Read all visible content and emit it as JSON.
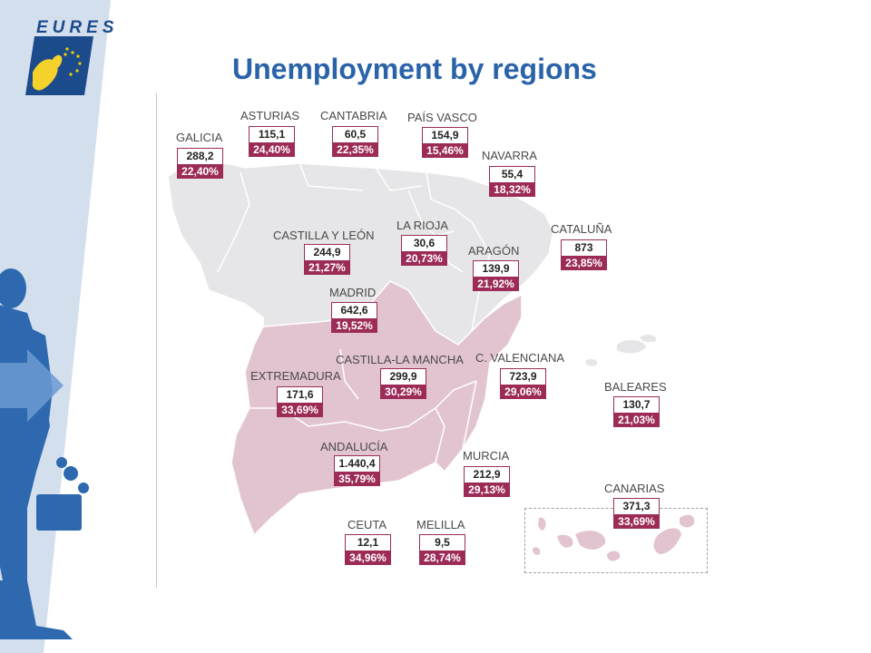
{
  "title": "Unemployment by regions",
  "logo": {
    "text": "EURES"
  },
  "colors": {
    "accent": "#9c2c57",
    "title": "#2a63a9",
    "highlight_region": "#e2c4d0",
    "base_region": "#e6e6e8"
  },
  "regions": [
    {
      "id": "galicia",
      "name": "GALICIA",
      "value": "288,2",
      "pct": "22,40%"
    },
    {
      "id": "asturias",
      "name": "ASTURIAS",
      "value": "115,1",
      "pct": "24,40%"
    },
    {
      "id": "cantabria",
      "name": "CANTABRIA",
      "value": "60,5",
      "pct": "22,35%"
    },
    {
      "id": "pais-vasco",
      "name": "PAÍS VASCO",
      "value": "154,9",
      "pct": "15,46%"
    },
    {
      "id": "navarra",
      "name": "NAVARRA",
      "value": "55,4",
      "pct": "18,32%"
    },
    {
      "id": "castilla-leon",
      "name": "CASTILLA Y LEÓN",
      "value": "244,9",
      "pct": "21,27%"
    },
    {
      "id": "la-rioja",
      "name": "LA RIOJA",
      "value": "30,6",
      "pct": "20,73%"
    },
    {
      "id": "aragon",
      "name": "ARAGÓN",
      "value": "139,9",
      "pct": "21,92%"
    },
    {
      "id": "cataluna",
      "name": "CATALUÑA",
      "value": "873",
      "pct": "23,85%"
    },
    {
      "id": "madrid",
      "name": "MADRID",
      "value": "642,6",
      "pct": "19,52%"
    },
    {
      "id": "castilla-la-mancha",
      "name": "CASTILLA-LA MANCHA",
      "value": "299,9",
      "pct": "30,29%"
    },
    {
      "id": "c-valenciana",
      "name": "C. VALENCIANA",
      "value": "723,9",
      "pct": "29,06%"
    },
    {
      "id": "extremadura",
      "name": "EXTREMADURA",
      "value": "171,6",
      "pct": "33,69%"
    },
    {
      "id": "baleares",
      "name": "BALEARES",
      "value": "130,7",
      "pct": "21,03%"
    },
    {
      "id": "andalucia",
      "name": "ANDALUCÍA",
      "value": "1.440,4",
      "pct": "35,79%"
    },
    {
      "id": "murcia",
      "name": "MURCIA",
      "value": "212,9",
      "pct": "29,13%"
    },
    {
      "id": "canarias",
      "name": "CANARIAS",
      "value": "371,3",
      "pct": "33,69%"
    },
    {
      "id": "ceuta",
      "name": "CEUTA",
      "value": "12,1",
      "pct": "34,96%"
    },
    {
      "id": "melilla",
      "name": "MELILLA",
      "value": "9,5",
      "pct": "28,74%"
    }
  ]
}
